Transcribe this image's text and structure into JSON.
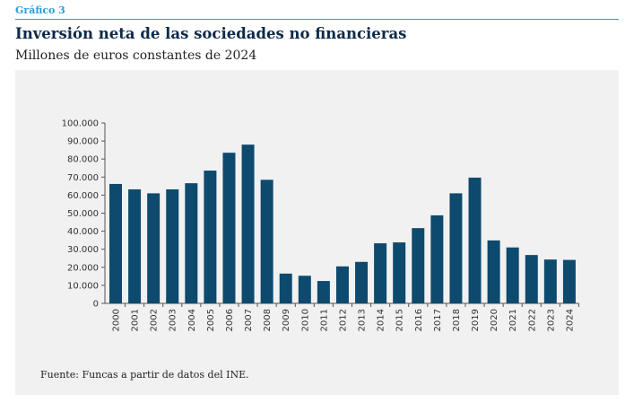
{
  "header": {
    "label": "Gráfico 3",
    "title": "Inversión neta de las sociedades no financieras",
    "subtitle": "Millones de euros constantes de 2024"
  },
  "footer": {
    "source": "Fuente: Funcas a partir de datos del INE."
  },
  "colors": {
    "bar": "#0d4a6e",
    "accent": "#2a9fd6",
    "panel": "#f1f1f1"
  },
  "chart_data": {
    "type": "bar",
    "categories": [
      "2000",
      "2001",
      "2002",
      "2003",
      "2004",
      "2005",
      "2006",
      "2007",
      "2008",
      "2009",
      "2010",
      "2011",
      "2012",
      "2013",
      "2014",
      "2015",
      "2016",
      "2017",
      "2018",
      "2019",
      "2020",
      "2021",
      "2022",
      "2023",
      "2024"
    ],
    "values": [
      66200,
      63200,
      61000,
      63200,
      66600,
      73600,
      83500,
      88000,
      68500,
      16500,
      15300,
      12400,
      20500,
      23000,
      33300,
      33800,
      41700,
      48800,
      61000,
      69700,
      34900,
      31000,
      26800,
      24300,
      24100
    ],
    "yticks": [
      "0",
      "10.000",
      "20.000",
      "30.000",
      "40.000",
      "50.000",
      "60.000",
      "70.000",
      "80.000",
      "90.000",
      "100.000"
    ],
    "ylim": [
      0,
      100000
    ],
    "grid": false,
    "legend": "none"
  }
}
